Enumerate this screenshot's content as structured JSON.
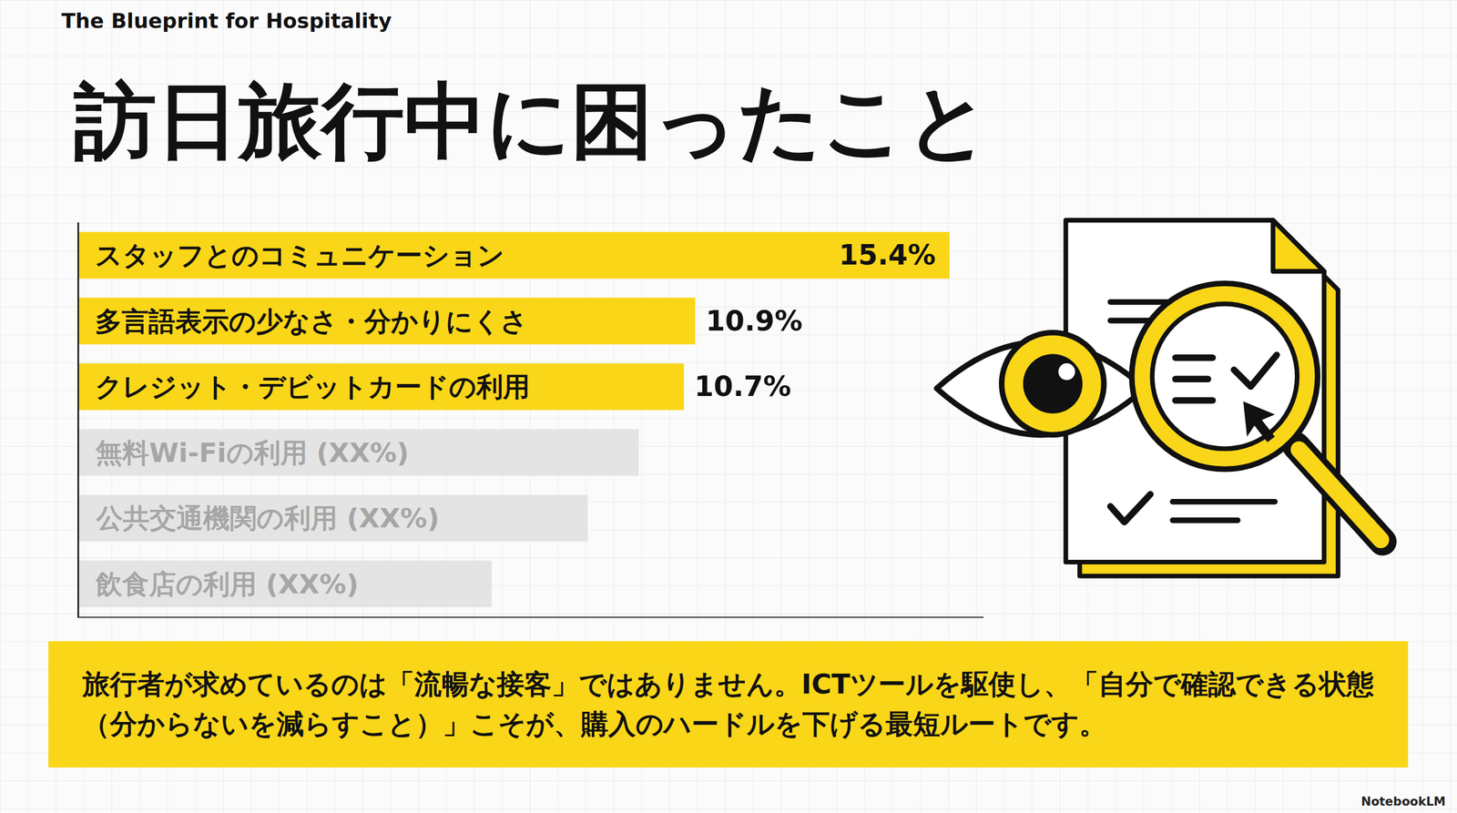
{
  "header": "The Blueprint for Hospitality",
  "chart_data": {
    "type": "bar",
    "orientation": "horizontal",
    "title": "訪日旅行中に困ったこと",
    "categories": [
      "スタッフとのコミュニケーション",
      "多言語表示の少なさ・分かりにくさ",
      "クレジット・デビットカードの利用",
      "無料Wi-Fiの利用 (XX%)",
      "公共交通機関の利用 (XX%)",
      "飲食店の利用 (XX%)"
    ],
    "values": [
      15.4,
      10.9,
      10.7,
      9.9,
      9,
      7.3
    ],
    "value_labels": [
      "15.4%",
      "10.9%",
      "10.7%",
      null,
      null,
      null
    ],
    "colors": [
      "#FAD619",
      "#FAD619",
      "#FAD619",
      "#E4E4E4",
      "#E4E4E4",
      "#E4E4E4"
    ],
    "xlim": [
      0,
      16
    ],
    "tick_labels": false,
    "grid": false,
    "data_labels": true
  },
  "callout": "旅行者が求めているのは「流暢な接客」ではありません。ICTツールを駆使し、「自分で確認できる状態（分からないを減らすこと）」こそが、購入のハードルを下げる最短ルートです。",
  "footer": "NotebookLM"
}
